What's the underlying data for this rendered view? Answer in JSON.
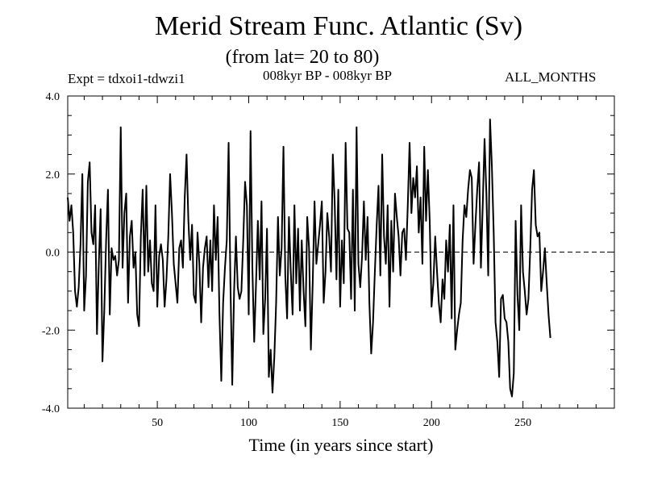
{
  "chart_data": {
    "type": "line",
    "title": "Merid Stream Func. Atlantic (Sv)",
    "subtitle": "(from lat= 20 to 80)",
    "left_annotation": "Expt = tdxoi1-tdwzi1",
    "center_annotation": "008kyr BP - 008kyr BP",
    "right_annotation": "ALL_MONTHS",
    "xlabel": "Time (in years since start)",
    "ylabel": "",
    "xlim": [
      1,
      300
    ],
    "ylim": [
      -4.0,
      4.0
    ],
    "x_ticks": [
      50,
      100,
      150,
      200,
      250
    ],
    "x_tick_labels": [
      "50",
      "100",
      "150",
      "200",
      "250"
    ],
    "y_ticks": [
      -4.0,
      -2.0,
      0.0,
      2.0,
      4.0
    ],
    "y_tick_labels": [
      "-4.0",
      "-2.0",
      "0.0",
      "2.0",
      "4.0"
    ],
    "reference_line": 0.0,
    "series": [
      {
        "name": "Merid Stream Func. Atlantic",
        "x_start": 1,
        "x_step": 1,
        "values": [
          1.4,
          0.8,
          1.2,
          0.5,
          -1.0,
          -1.4,
          -0.9,
          0.2,
          2.0,
          -1.5,
          -0.6,
          1.8,
          2.3,
          0.5,
          0.2,
          1.2,
          -2.1,
          -0.3,
          1.1,
          -2.8,
          -1.5,
          0.3,
          1.6,
          -1.6,
          0.1,
          -0.2,
          -0.1,
          -0.6,
          -0.2,
          3.2,
          -0.4,
          1.0,
          1.5,
          -1.3,
          0.4,
          0.8,
          -0.4,
          0.0,
          -1.6,
          -1.9,
          0.4,
          1.6,
          -0.6,
          1.7,
          -0.5,
          0.3,
          -0.8,
          -1.0,
          1.2,
          -1.4,
          -0.1,
          0.2,
          -0.2,
          -1.4,
          -0.7,
          0.4,
          2.0,
          1.0,
          -0.3,
          -0.8,
          -1.3,
          0.1,
          0.3,
          -0.4,
          1.4,
          2.5,
          0.8,
          -0.2,
          0.7,
          -1.1,
          -1.3,
          0.5,
          -0.3,
          -1.8,
          -0.4,
          0.1,
          0.4,
          -0.9,
          0.3,
          -1.0,
          1.2,
          -0.2,
          0.9,
          -1.6,
          -3.3,
          -1.3,
          -0.4,
          0.3,
          2.8,
          -0.8,
          -3.4,
          -1.0,
          0.4,
          -0.9,
          -1.2,
          -1.0,
          0.3,
          1.8,
          1.2,
          -1.6,
          3.1,
          -0.4,
          -2.3,
          -0.8,
          0.8,
          -0.7,
          1.3,
          -2.1,
          -1.2,
          0.6,
          -3.2,
          -2.5,
          -3.6,
          -2.7,
          -1.3,
          0.9,
          -0.6,
          0.1,
          2.7,
          -0.6,
          -1.7,
          0.9,
          -0.5,
          -1.6,
          1.2,
          -0.8,
          0.6,
          -1.5,
          0.3,
          -1.0,
          -1.9,
          0.9,
          0.1,
          -2.5,
          -0.8,
          1.3,
          -0.3,
          0.2,
          0.7,
          1.3,
          -1.3,
          -0.5,
          1.0,
          0.4,
          -0.5,
          2.5,
          1.3,
          -0.7,
          1.6,
          -1.4,
          0.3,
          -0.8,
          2.8,
          0.6,
          0.5,
          -1.2,
          1.6,
          -1.5,
          3.2,
          -0.3,
          -0.9,
          -0.1,
          1.3,
          -0.2,
          0.9,
          -1.3,
          -2.6,
          -1.8,
          -0.5,
          0.7,
          1.7,
          -0.6,
          2.5,
          0.4,
          -0.3,
          1.2,
          -1.4,
          0.8,
          -0.5,
          1.5,
          0.9,
          0.4,
          -0.6,
          0.5,
          0.6,
          -0.2,
          1.2,
          2.8,
          1.0,
          1.9,
          1.4,
          2.2,
          0.5,
          1.4,
          -0.3,
          2.7,
          0.8,
          2.1,
          0.8,
          -1.4,
          -0.8,
          0.4,
          -0.5,
          -1.3,
          -1.8,
          -0.7,
          -1.2,
          0.3,
          -0.5,
          0.7,
          -1.7,
          1.2,
          -2.5,
          -2.0,
          -1.6,
          -1.3,
          0.3,
          1.2,
          0.9,
          1.6,
          2.1,
          1.9,
          -0.3,
          0.7,
          1.6,
          2.3,
          -0.4,
          1.2,
          2.9,
          1.5,
          -0.6,
          3.4,
          2.2,
          0.5,
          -1.8,
          -2.3,
          -3.2,
          -1.2,
          -1.1,
          -1.7,
          -1.8,
          -2.3,
          -3.5,
          -3.7,
          -3.1,
          0.8,
          -1.1,
          -2.0,
          1.2,
          -0.5,
          -1.0,
          -1.6,
          -1.2,
          0.1,
          1.6,
          2.1,
          0.7,
          0.4,
          0.5,
          -1.0,
          -0.5,
          0.1,
          -0.8,
          -1.6,
          -2.2
        ]
      }
    ],
    "colors": {
      "line": "#000000",
      "axes": "#000000",
      "background": "#ffffff"
    }
  }
}
